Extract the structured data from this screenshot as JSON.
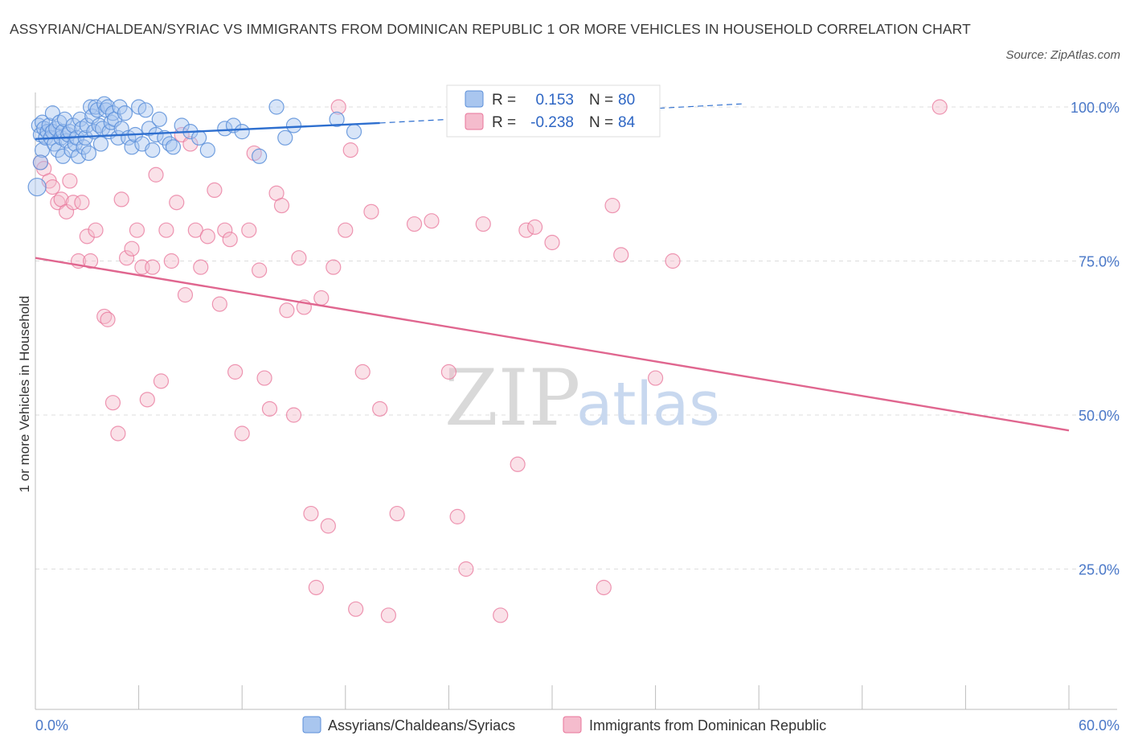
{
  "title": "ASSYRIAN/CHALDEAN/SYRIAC VS IMMIGRANTS FROM DOMINICAN REPUBLIC 1 OR MORE VEHICLES IN HOUSEHOLD CORRELATION CHART",
  "source": "Source: ZipAtlas.com",
  "watermark": {
    "zip": "ZIP",
    "atlas": "atlas"
  },
  "colors": {
    "blue": "#5b8fd9",
    "blue_fill": "#a9c6ef",
    "blue_line": "#2e6fcf",
    "pink": "#e8749a",
    "pink_fill": "#f5bccd",
    "pink_line": "#e0668f",
    "grid": "#dddddd",
    "axis_text": "#4a78c8"
  },
  "chart_data": {
    "type": "scatter",
    "xlabel": "",
    "ylabel": "1 or more Vehicles in Household",
    "xlim": [
      0,
      60
    ],
    "ylim": [
      0,
      100
    ],
    "x_tick_labels": [
      "0.0%",
      "60.0%"
    ],
    "y_ticks": [
      25,
      50,
      75,
      100
    ],
    "y_tick_labels": [
      "25.0%",
      "50.0%",
      "75.0%",
      "100.0%"
    ],
    "grid": true,
    "legend_position": "bottom",
    "stats": {
      "blue": {
        "r_label": "R =",
        "r_value": "0.153",
        "n_label": "N =",
        "n_value": "80"
      },
      "pink": {
        "r_label": "R =",
        "r_value": "-0.238",
        "n_label": "N =",
        "n_value": "84"
      }
    },
    "series": [
      {
        "name": "Assyrians/Chaldeans/Syriacs",
        "color": "#5b8fd9",
        "trend": {
          "x": [
            0,
            20
          ],
          "y": [
            94.8,
            97.4
          ],
          "dashed_to": [
            41,
            100.5
          ]
        },
        "points": [
          [
            0.1,
            87
          ],
          [
            0.2,
            97
          ],
          [
            0.3,
            95.5
          ],
          [
            0.4,
            93
          ],
          [
            0.4,
            97.5
          ],
          [
            0.5,
            96.5
          ],
          [
            0.6,
            95
          ],
          [
            0.7,
            96
          ],
          [
            0.8,
            97
          ],
          [
            0.9,
            95
          ],
          [
            1.0,
            99
          ],
          [
            1.0,
            96
          ],
          [
            1.1,
            94
          ],
          [
            1.2,
            96.5
          ],
          [
            1.3,
            93
          ],
          [
            1.4,
            97.5
          ],
          [
            1.5,
            95
          ],
          [
            1.6,
            96
          ],
          [
            1.6,
            92
          ],
          [
            1.7,
            98
          ],
          [
            1.8,
            94.5
          ],
          [
            1.9,
            95.5
          ],
          [
            2.0,
            96
          ],
          [
            2.1,
            93
          ],
          [
            2.2,
            97
          ],
          [
            2.3,
            94
          ],
          [
            2.4,
            95
          ],
          [
            2.5,
            92
          ],
          [
            2.6,
            98
          ],
          [
            2.7,
            96.5
          ],
          [
            2.8,
            93.5
          ],
          [
            2.9,
            95
          ],
          [
            3.0,
            97
          ],
          [
            3.1,
            92.5
          ],
          [
            3.2,
            100
          ],
          [
            3.3,
            98.5
          ],
          [
            3.4,
            96
          ],
          [
            3.5,
            100
          ],
          [
            3.6,
            99.5
          ],
          [
            3.7,
            97
          ],
          [
            3.8,
            94
          ],
          [
            3.9,
            96.5
          ],
          [
            4.0,
            100.5
          ],
          [
            4.1,
            99.5
          ],
          [
            4.2,
            100
          ],
          [
            4.3,
            96
          ],
          [
            4.4,
            97.5
          ],
          [
            4.5,
            99
          ],
          [
            4.6,
            98
          ],
          [
            4.8,
            95
          ],
          [
            4.9,
            100
          ],
          [
            5.0,
            96.5
          ],
          [
            5.2,
            99
          ],
          [
            5.4,
            95
          ],
          [
            5.6,
            93.5
          ],
          [
            5.8,
            95.5
          ],
          [
            6.0,
            100
          ],
          [
            6.2,
            94
          ],
          [
            6.4,
            99.5
          ],
          [
            6.6,
            96.5
          ],
          [
            6.8,
            93
          ],
          [
            7.0,
            95.5
          ],
          [
            7.2,
            98
          ],
          [
            7.5,
            95
          ],
          [
            7.8,
            94
          ],
          [
            8.0,
            93.5
          ],
          [
            8.5,
            97
          ],
          [
            9.0,
            96
          ],
          [
            9.5,
            95
          ],
          [
            10.0,
            93
          ],
          [
            11.0,
            96.5
          ],
          [
            11.5,
            97
          ],
          [
            12.0,
            96
          ],
          [
            13.0,
            92
          ],
          [
            14.0,
            100
          ],
          [
            14.5,
            95
          ],
          [
            15.0,
            97
          ],
          [
            17.5,
            98
          ],
          [
            18.5,
            96
          ],
          [
            0.3,
            91
          ]
        ]
      },
      {
        "name": "Immigrants from Dominican Republic",
        "color": "#e8749a",
        "trend": {
          "x": [
            0,
            60
          ],
          "y": [
            75.5,
            47.5
          ]
        },
        "points": [
          [
            0.3,
            91
          ],
          [
            0.5,
            90
          ],
          [
            0.8,
            88
          ],
          [
            1.0,
            87
          ],
          [
            1.3,
            84.5
          ],
          [
            1.5,
            85
          ],
          [
            1.8,
            83
          ],
          [
            2.0,
            88
          ],
          [
            2.2,
            84.5
          ],
          [
            2.5,
            75
          ],
          [
            2.7,
            84.5
          ],
          [
            3.0,
            79
          ],
          [
            3.2,
            75
          ],
          [
            3.5,
            80
          ],
          [
            4.0,
            66
          ],
          [
            4.2,
            65.5
          ],
          [
            4.5,
            52
          ],
          [
            4.8,
            47
          ],
          [
            5.0,
            85
          ],
          [
            5.3,
            75.5
          ],
          [
            5.6,
            77
          ],
          [
            5.9,
            80
          ],
          [
            6.2,
            74
          ],
          [
            6.5,
            52.5
          ],
          [
            6.8,
            74
          ],
          [
            7.0,
            89
          ],
          [
            7.3,
            55.5
          ],
          [
            7.6,
            80
          ],
          [
            7.9,
            75
          ],
          [
            8.2,
            84.5
          ],
          [
            8.5,
            95.5
          ],
          [
            8.7,
            69.5
          ],
          [
            9.0,
            94
          ],
          [
            9.3,
            80
          ],
          [
            9.6,
            74
          ],
          [
            10.0,
            79
          ],
          [
            10.4,
            86.5
          ],
          [
            10.7,
            68
          ],
          [
            11.0,
            80
          ],
          [
            11.3,
            78.5
          ],
          [
            11.6,
            57
          ],
          [
            12.0,
            47
          ],
          [
            12.4,
            80
          ],
          [
            12.7,
            92.5
          ],
          [
            13.0,
            73.5
          ],
          [
            13.3,
            56
          ],
          [
            13.6,
            51
          ],
          [
            14.0,
            86
          ],
          [
            14.3,
            84
          ],
          [
            14.6,
            67
          ],
          [
            15.0,
            50
          ],
          [
            15.3,
            75.5
          ],
          [
            15.6,
            67.5
          ],
          [
            16.0,
            34
          ],
          [
            16.3,
            22
          ],
          [
            16.6,
            69
          ],
          [
            17.0,
            32
          ],
          [
            17.3,
            74
          ],
          [
            17.6,
            100
          ],
          [
            18.0,
            80
          ],
          [
            18.3,
            93
          ],
          [
            18.6,
            18.5
          ],
          [
            19.0,
            57
          ],
          [
            19.5,
            83
          ],
          [
            20.0,
            51
          ],
          [
            20.5,
            17.5
          ],
          [
            21.0,
            34
          ],
          [
            22.0,
            81
          ],
          [
            23.0,
            81.5
          ],
          [
            24.0,
            57
          ],
          [
            24.5,
            33.5
          ],
          [
            25.0,
            25
          ],
          [
            26.0,
            81
          ],
          [
            27.0,
            17.5
          ],
          [
            28.0,
            42
          ],
          [
            28.5,
            80
          ],
          [
            29.0,
            80.5
          ],
          [
            30.0,
            78
          ],
          [
            33.0,
            22
          ],
          [
            33.5,
            84
          ],
          [
            34.0,
            76
          ],
          [
            36.0,
            56
          ],
          [
            37.0,
            75
          ],
          [
            52.5,
            100
          ]
        ]
      }
    ]
  },
  "legend": [
    {
      "label": "Assyrians/Chaldeans/Syriacs",
      "color": "#a9c6ef"
    },
    {
      "label": "Immigrants from Dominican Republic",
      "color": "#f5bccd"
    }
  ]
}
